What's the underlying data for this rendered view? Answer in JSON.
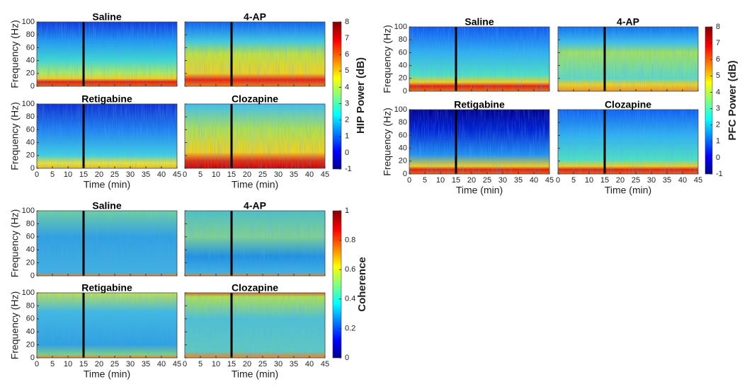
{
  "chart_data": [
    {
      "type": "heatmap",
      "panel_titles": [
        "Saline",
        "4-AP",
        "Retigabine",
        "Clozapine"
      ],
      "xlabel": "Time (min)",
      "ylabel": "Frequency (Hz)",
      "xlim": [
        0,
        45
      ],
      "xticks": [
        0,
        5,
        10,
        15,
        20,
        25,
        30,
        35,
        40,
        45
      ],
      "ylim": [
        0,
        100
      ],
      "yticks": [
        0,
        20,
        40,
        60,
        80,
        100
      ],
      "vline": 15,
      "colorbar": {
        "label": "HIP Power (dB)",
        "lim": [
          -1,
          8
        ],
        "ticks": [
          -1,
          0,
          1,
          2,
          3,
          4,
          5,
          6,
          7,
          8
        ]
      }
    },
    {
      "type": "heatmap",
      "panel_titles": [
        "Saline",
        "4-AP",
        "Retigabine",
        "Clozapine"
      ],
      "xlabel": "Time (min)",
      "ylabel": "Frequency (Hz)",
      "xlim": [
        0,
        45
      ],
      "xticks": [
        0,
        5,
        10,
        15,
        20,
        25,
        30,
        35,
        40,
        45
      ],
      "ylim": [
        0,
        100
      ],
      "yticks": [
        0,
        20,
        40,
        60,
        80,
        100
      ],
      "vline": 15,
      "colorbar": {
        "label": "PFC Power (dB)",
        "lim": [
          -1,
          8
        ],
        "ticks": [
          -1,
          0,
          1,
          2,
          3,
          4,
          5,
          6,
          7,
          8
        ]
      }
    },
    {
      "type": "heatmap",
      "panel_titles": [
        "Saline",
        "4-AP",
        "Retigabine",
        "Clozapine"
      ],
      "xlabel": "Time (min)",
      "ylabel": "Frequency (Hz)",
      "xlim": [
        0,
        45
      ],
      "xticks": [
        0,
        5,
        10,
        15,
        20,
        25,
        30,
        35,
        40,
        45
      ],
      "ylim": [
        0,
        100
      ],
      "yticks": [
        0,
        20,
        40,
        60,
        80,
        100
      ],
      "vline": 15,
      "colorbar": {
        "label": "Coherence",
        "lim": [
          0,
          1
        ],
        "ticks": [
          0,
          0.2,
          0.4,
          0.6,
          0.8,
          1
        ]
      }
    }
  ]
}
